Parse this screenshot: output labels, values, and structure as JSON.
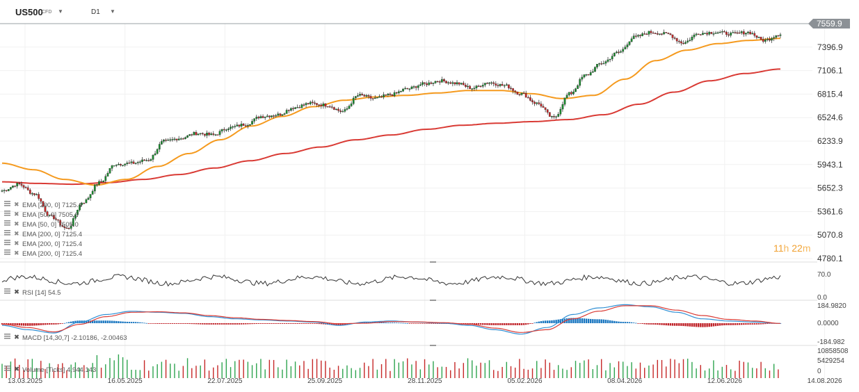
{
  "header": {
    "symbol": "US500",
    "instrument_type": "CFD",
    "timeframe": "D1"
  },
  "timer": {
    "hours": "11",
    "h_unit": "h",
    "minutes": "22",
    "m_unit": "m"
  },
  "price_tag": "7559.9",
  "price_axis": [
    "7396.9",
    "7106.1",
    "6815.4",
    "6524.6",
    "6233.9",
    "5943.1",
    "5652.3",
    "5361.6",
    "5070.8",
    "4780.1"
  ],
  "indicator_legends": [
    "EMA [200, 0] 7125.4",
    "EMA [50, 0] 7505.0",
    "EMA [50, 0] 7505.0",
    "EMA [200, 0] 7125.4",
    "EMA [200, 0] 7125.4",
    "EMA [200, 0] 7125.4"
  ],
  "rsi": {
    "label": "RSI [14] 54.5",
    "axis": [
      "70.0",
      "0.0"
    ]
  },
  "macd": {
    "label": "MACD [14,30,7] -2.10186, -2.00463",
    "axis": [
      "184.9820",
      "0.0000",
      "-184.982"
    ]
  },
  "volume": {
    "label": "Volume [Ticks] 4,944,143",
    "axis": [
      "10858508",
      "5429254",
      "0"
    ]
  },
  "date_axis": [
    "13.03.2025",
    "16.05.2025",
    "22.07.2025",
    "25.09.2025",
    "28.11.2025",
    "05.02.2026",
    "08.04.2026",
    "12.06.2026",
    "14.08.2026"
  ],
  "chart_data": {
    "type": "candlestick",
    "symbol": "US500",
    "timeframe": "D1",
    "last_price": 7559.9,
    "ylim": [
      4780.1,
      7687.6
    ],
    "x_range": [
      "13.03.2025",
      "14.08.2026"
    ],
    "series": [
      {
        "name": "EMA [200, 0]",
        "color": "#d93a34",
        "x": [
          "13.03.2025",
          "16.05.2025",
          "22.07.2025",
          "25.09.2025",
          "28.11.2025",
          "05.02.2026",
          "08.04.2026",
          "12.06.2026",
          "14.08.2026"
        ],
        "values": [
          5700,
          5730,
          5860,
          6060,
          6250,
          6430,
          6570,
          6890,
          7125.4
        ]
      },
      {
        "name": "EMA [50, 0]",
        "color": "#f59a1e",
        "x": [
          "13.03.2025",
          "16.05.2025",
          "22.07.2025",
          "25.09.2025",
          "28.11.2025",
          "05.02.2026",
          "08.04.2026",
          "12.06.2026",
          "14.08.2026"
        ],
        "values": [
          5950,
          5700,
          6080,
          6520,
          6780,
          6890,
          6760,
          7290,
          7505.0
        ]
      },
      {
        "name": "Close",
        "x": [
          "13.03.2025",
          "16.05.2025",
          "22.07.2025",
          "25.09.2025",
          "28.11.2025",
          "05.02.2026",
          "08.04.2026",
          "12.06.2026",
          "14.08.2026"
        ],
        "values": [
          5630,
          5950,
          6320,
          6650,
          6820,
          6940,
          7080,
          7560,
          7559.9
        ]
      }
    ],
    "subcharts": [
      {
        "name": "RSI [14]",
        "last": 54.5,
        "range": [
          0,
          100
        ]
      },
      {
        "name": "MACD [14,30,7]",
        "values": [
          -2.10186,
          -2.00463
        ],
        "range": [
          -184.982,
          184.982
        ]
      },
      {
        "name": "Volume [Ticks]",
        "last": 4944143,
        "range": [
          0,
          10858508
        ]
      }
    ]
  }
}
